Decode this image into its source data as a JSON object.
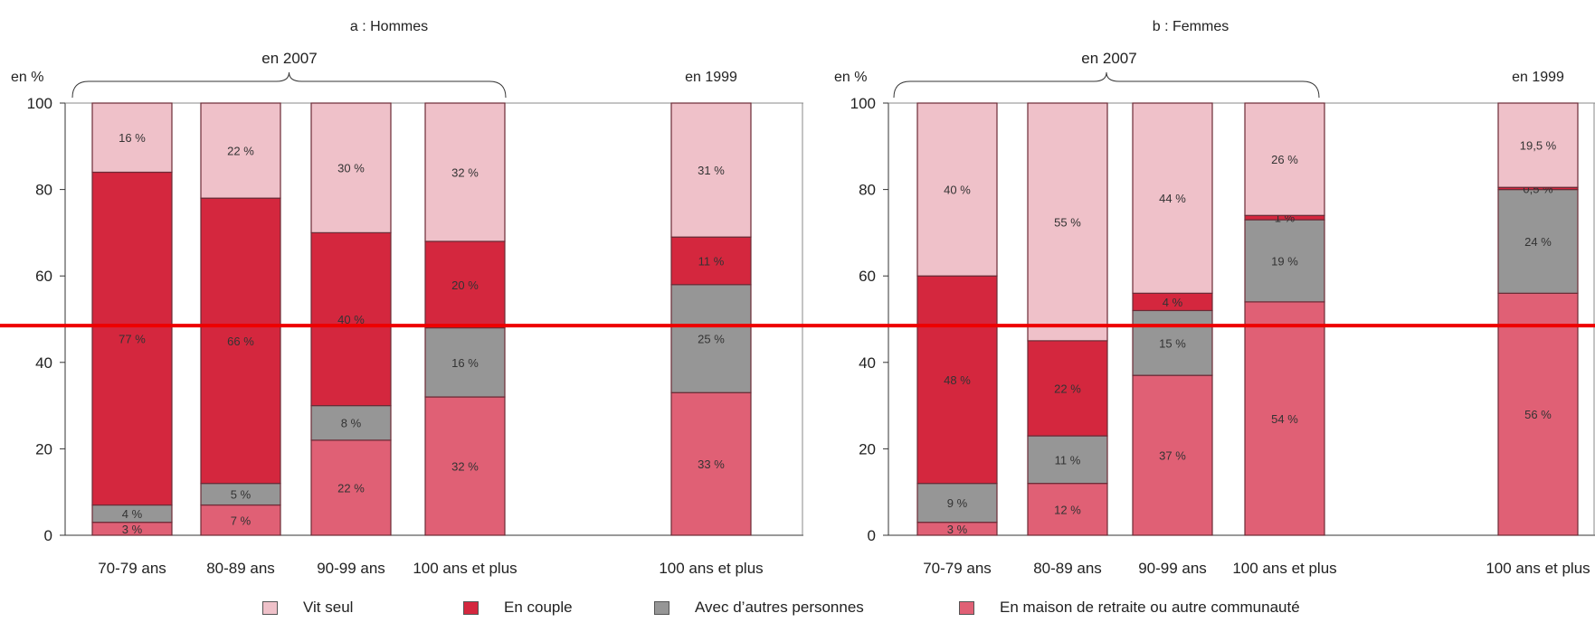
{
  "colors": {
    "vit_seul": "#efc1c9",
    "en_couple": "#d4273e",
    "autres": "#969696",
    "maison": "#e06075"
  },
  "legend": [
    {
      "key": "vit_seul",
      "label": "Vit seul"
    },
    {
      "key": "en_couple",
      "label": "En couple"
    },
    {
      "key": "autres",
      "label": "Avec d’autres personnes"
    },
    {
      "key": "maison",
      "label": "En maison de retraite ou autre communauté"
    }
  ],
  "chart_data": [
    {
      "type": "bar",
      "stacked": true,
      "title": "a : Hommes",
      "ylabel": "en %",
      "ylim": [
        0,
        100
      ],
      "yticks": [
        0,
        20,
        40,
        60,
        80,
        100
      ],
      "grid": false,
      "group_labels": [
        "en 2007",
        "en 1999"
      ],
      "categories": [
        "70-79 ans",
        "80-89 ans",
        "90-99 ans",
        "100 ans et plus",
        "100 ans et plus"
      ],
      "series": [
        {
          "key": "maison",
          "name": "En maison de retraite ou autre communauté",
          "values": [
            3,
            7,
            22,
            32,
            33
          ],
          "labels": [
            "3 %",
            "7 %",
            "22 %",
            "32 %",
            "33 %"
          ]
        },
        {
          "key": "autres",
          "name": "Avec d’autres personnes",
          "values": [
            4,
            5,
            8,
            16,
            25
          ],
          "labels": [
            "4 %",
            "5 %",
            "8 %",
            "16 %",
            "25 %"
          ]
        },
        {
          "key": "en_couple",
          "name": "En couple",
          "values": [
            77,
            66,
            40,
            20,
            11
          ],
          "labels": [
            "77 %",
            "66 %",
            "40 %",
            "20 %",
            "11 %"
          ]
        },
        {
          "key": "vit_seul",
          "name": "Vit seul",
          "values": [
            16,
            22,
            30,
            32,
            31
          ],
          "labels": [
            "16 %",
            "22 %",
            "30 %",
            "32 %",
            "31 %"
          ]
        }
      ]
    },
    {
      "type": "bar",
      "stacked": true,
      "title": "b : Femmes",
      "ylabel": "en %",
      "ylim": [
        0,
        100
      ],
      "yticks": [
        0,
        20,
        40,
        60,
        80,
        100
      ],
      "grid": false,
      "group_labels": [
        "en 2007",
        "en 1999"
      ],
      "categories": [
        "70-79 ans",
        "80-89 ans",
        "90-99 ans",
        "100 ans et plus",
        "100 ans et plus"
      ],
      "series": [
        {
          "key": "maison",
          "name": "En maison de retraite ou autre communauté",
          "values": [
            3,
            12,
            37,
            54,
            56
          ],
          "labels": [
            "3 %",
            "12 %",
            "37 %",
            "54 %",
            "56 %"
          ]
        },
        {
          "key": "autres",
          "name": "Avec d’autres personnes",
          "values": [
            9,
            11,
            15,
            19,
            24
          ],
          "labels": [
            "9 %",
            "11 %",
            "15 %",
            "19 %",
            "24 %"
          ]
        },
        {
          "key": "en_couple",
          "name": "En couple",
          "values": [
            48,
            22,
            4,
            1,
            0.5
          ],
          "labels": [
            "48 %",
            "22 %",
            "4 %",
            "1 %",
            "0,5 %"
          ]
        },
        {
          "key": "vit_seul",
          "name": "Vit seul",
          "values": [
            40,
            55,
            44,
            26,
            19.5
          ],
          "labels": [
            "40 %",
            "55 %",
            "44 %",
            "26 %",
            "19,5 %"
          ]
        }
      ]
    }
  ],
  "overlay": {
    "type": "horizontal-line",
    "color": "#ee0000",
    "y_value": 48.5
  }
}
